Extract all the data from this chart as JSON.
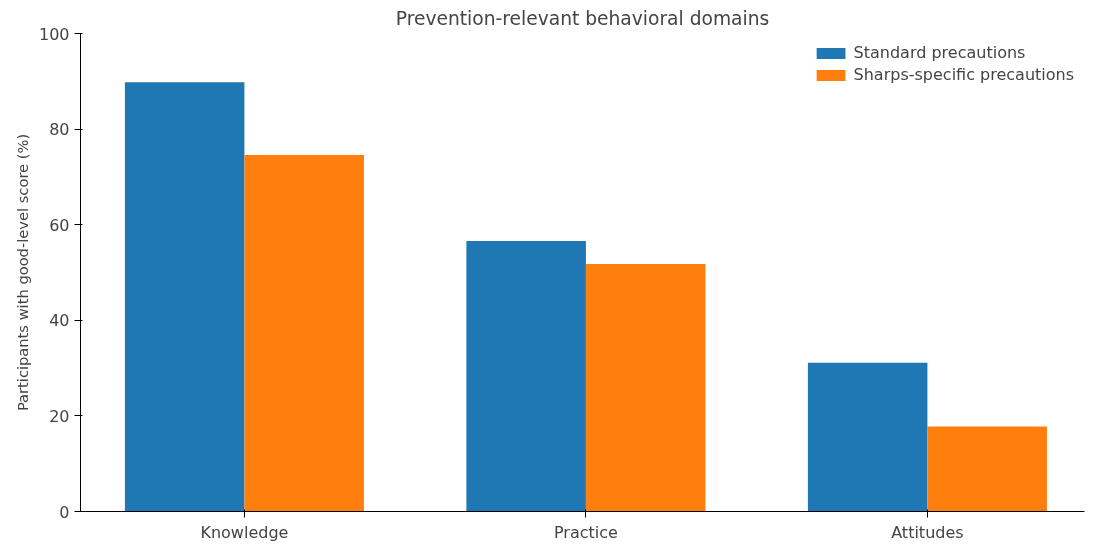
{
  "chart_data": {
    "type": "bar",
    "title": "Prevention-relevant behavioral domains",
    "ylabel": "Participants with good-level score (%)",
    "categories": [
      "Knowledge",
      "Practice",
      "Attitudes"
    ],
    "series": [
      {
        "name": "Standard precautions",
        "color": "#1f77b4",
        "values": [
          89.8,
          56.6,
          31.1
        ]
      },
      {
        "name": "Sharps-specific precautions",
        "color": "#ff7f0e",
        "values": [
          74.6,
          51.8,
          17.8
        ]
      }
    ],
    "ylim": [
      0,
      100
    ],
    "yticks": [
      0,
      20,
      40,
      60,
      80,
      100
    ],
    "grid": false,
    "legend": "top right"
  }
}
